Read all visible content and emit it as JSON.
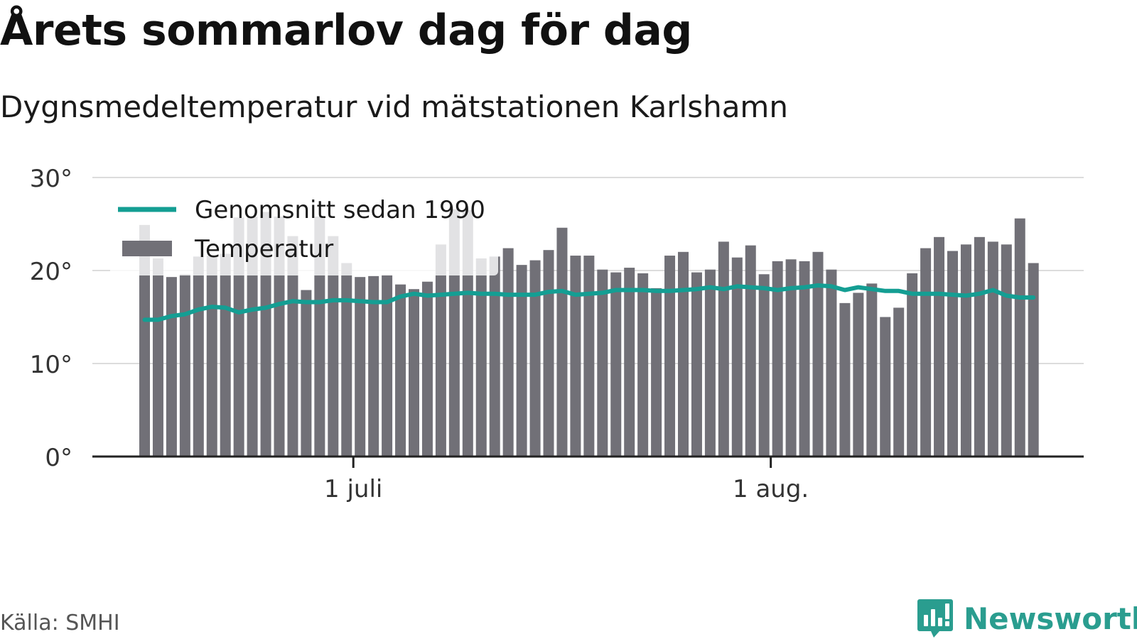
{
  "title": "Årets sommarlov dag för dag",
  "subtitle": "Dygnsmedeltemperatur vid mätstationen Karlshamn",
  "source": "Källa: SMHI",
  "brand": "Newsworthy",
  "colors": {
    "bar": "#717077",
    "line": "#149e93",
    "brand": "#2a9d8f",
    "grid": "#dcdcdc",
    "axis": "#222222"
  },
  "chart_data": {
    "type": "bar",
    "ylim": [
      0,
      30
    ],
    "y_ticks": [
      {
        "value": 0,
        "label": "0°"
      },
      {
        "value": 10,
        "label": "10°"
      },
      {
        "value": 20,
        "label": "20°"
      },
      {
        "value": 30,
        "label": "30°"
      }
    ],
    "x_ticks": [
      {
        "index": 16,
        "label": "1 juli"
      },
      {
        "index": 47,
        "label": "1 aug."
      }
    ],
    "legend": {
      "placement": "top-left",
      "items": [
        "Genomsnitt sedan 1990",
        "Temperatur"
      ]
    },
    "series": [
      {
        "name": "Temperatur",
        "type": "bar",
        "values": [
          24.9,
          21.3,
          19.3,
          19.6,
          21.5,
          21.6,
          21.8,
          25.7,
          25.8,
          26.3,
          25.8,
          23.7,
          17.9,
          25.8,
          23.7,
          20.8,
          19.3,
          19.4,
          19.5,
          18.5,
          18.0,
          18.8,
          22.8,
          26.6,
          26.5,
          21.3,
          21.5,
          22.4,
          20.6,
          21.1,
          22.2,
          24.6,
          21.6,
          21.6,
          20.1,
          19.8,
          20.3,
          19.7,
          18.1,
          21.6,
          22.0,
          19.8,
          20.1,
          23.1,
          21.4,
          22.7,
          19.6,
          21.0,
          21.2,
          21.0,
          22.0,
          20.1,
          16.5,
          17.6,
          18.6,
          15.0,
          16.0,
          19.7,
          22.4,
          23.6,
          22.1,
          22.8,
          23.6,
          23.1,
          22.8,
          25.6,
          20.8
        ]
      },
      {
        "name": "Genomsnitt sedan 1990",
        "type": "line",
        "values": [
          14.7,
          14.7,
          15.1,
          15.3,
          15.8,
          16.1,
          16.0,
          15.5,
          15.8,
          16.0,
          16.4,
          16.7,
          16.6,
          16.6,
          16.8,
          16.8,
          16.7,
          16.6,
          16.6,
          17.2,
          17.5,
          17.3,
          17.4,
          17.5,
          17.6,
          17.5,
          17.5,
          17.4,
          17.4,
          17.4,
          17.7,
          17.8,
          17.4,
          17.5,
          17.6,
          17.9,
          17.9,
          17.9,
          17.8,
          17.8,
          17.9,
          18.0,
          18.2,
          18.0,
          18.3,
          18.2,
          18.1,
          17.9,
          18.1,
          18.2,
          18.4,
          18.3,
          17.9,
          18.2,
          18.0,
          17.8,
          17.8,
          17.5,
          17.5,
          17.5,
          17.4,
          17.3,
          17.5,
          17.9,
          17.3,
          17.1,
          17.1
        ]
      }
    ]
  }
}
